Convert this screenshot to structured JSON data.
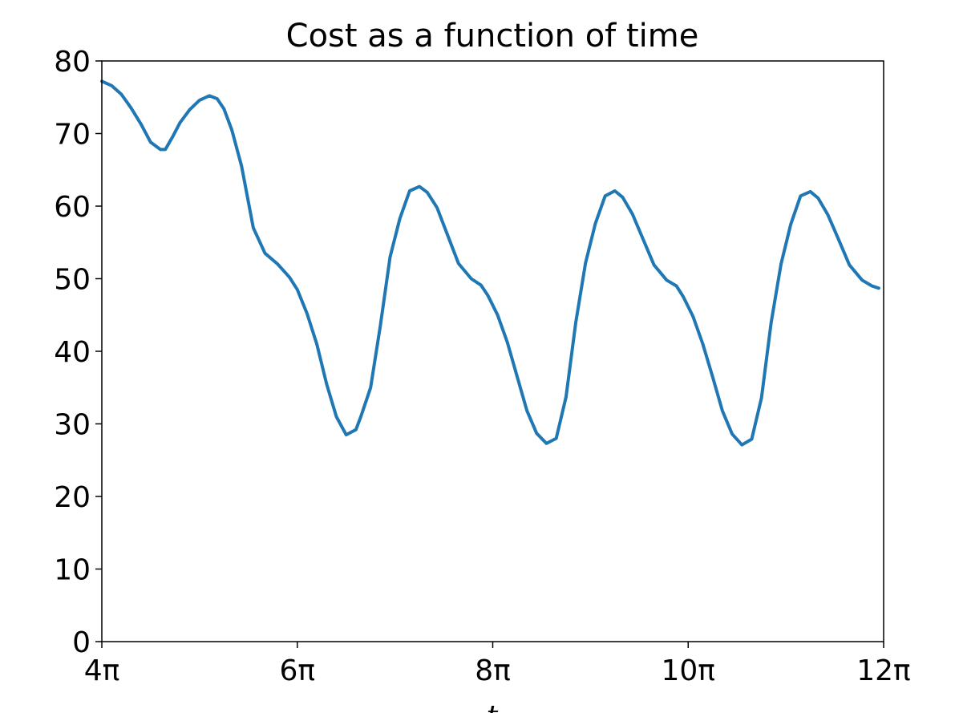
{
  "chart_data": {
    "type": "line",
    "title": "Cost as a function of time",
    "xlabel": "t",
    "ylabel": "",
    "xlim_pi": [
      4,
      12
    ],
    "ylim": [
      0,
      80
    ],
    "x_ticks": [
      {
        "value_pi": 4,
        "label": "4π"
      },
      {
        "value_pi": 6,
        "label": "6π"
      },
      {
        "value_pi": 8,
        "label": "8π"
      },
      {
        "value_pi": 10,
        "label": "10π"
      },
      {
        "value_pi": 12,
        "label": "12π"
      }
    ],
    "y_ticks": [
      {
        "value": 0,
        "label": "0"
      },
      {
        "value": 10,
        "label": "10"
      },
      {
        "value": 20,
        "label": "20"
      },
      {
        "value": 30,
        "label": "30"
      },
      {
        "value": 40,
        "label": "40"
      },
      {
        "value": 50,
        "label": "50"
      },
      {
        "value": 60,
        "label": "60"
      },
      {
        "value": 70,
        "label": "70"
      },
      {
        "value": 80,
        "label": "80"
      }
    ],
    "grid": false,
    "line_color": "#1f77b4",
    "series": [
      {
        "x_pi": [
          4.0,
          4.1,
          4.2,
          4.3,
          4.4,
          4.5,
          4.6,
          4.65,
          4.73,
          4.8,
          4.9,
          5.0,
          5.1,
          5.18,
          5.25,
          5.33,
          5.43,
          5.55,
          5.67,
          5.8,
          5.92,
          6.0,
          6.1,
          6.2,
          6.3,
          6.4,
          6.5,
          6.6,
          6.65,
          6.75,
          6.85,
          6.95,
          7.05,
          7.15,
          7.25,
          7.33,
          7.43,
          7.53,
          7.65,
          7.78,
          7.88,
          7.95,
          8.05,
          8.15,
          8.25,
          8.35,
          8.45,
          8.55,
          8.65,
          8.75,
          8.85,
          8.95,
          9.05,
          9.15,
          9.25,
          9.33,
          9.43,
          9.53,
          9.65,
          9.78,
          9.88,
          9.95,
          10.05,
          10.15,
          10.25,
          10.35,
          10.45,
          10.55,
          10.65,
          10.75,
          10.85,
          10.95,
          11.05,
          11.15,
          11.25,
          11.33,
          11.43,
          11.53,
          11.65,
          11.78,
          11.88,
          11.95
        ],
        "values": [
          77.2,
          76.6,
          75.4,
          73.5,
          71.3,
          68.8,
          67.8,
          67.8,
          69.7,
          71.5,
          73.3,
          74.6,
          75.2,
          74.8,
          73.4,
          70.5,
          65.5,
          57.0,
          53.5,
          52.0,
          50.2,
          48.5,
          45.2,
          41.0,
          35.5,
          31.0,
          28.5,
          29.2,
          31.0,
          35.0,
          43.5,
          53.0,
          58.3,
          62.1,
          62.7,
          61.9,
          59.8,
          56.3,
          52.1,
          50.0,
          49.1,
          47.7,
          45.0,
          41.2,
          36.5,
          31.8,
          28.7,
          27.3,
          28.0,
          33.7,
          44.0,
          52.2,
          57.6,
          61.4,
          62.1,
          61.2,
          58.9,
          55.7,
          51.9,
          49.8,
          49.0,
          47.5,
          44.8,
          41.0,
          36.5,
          31.8,
          28.6,
          27.1,
          27.9,
          33.6,
          44.0,
          52.0,
          57.5,
          61.4,
          62.0,
          61.1,
          58.8,
          55.7,
          51.9,
          49.8,
          49.0,
          48.7
        ]
      }
    ]
  }
}
